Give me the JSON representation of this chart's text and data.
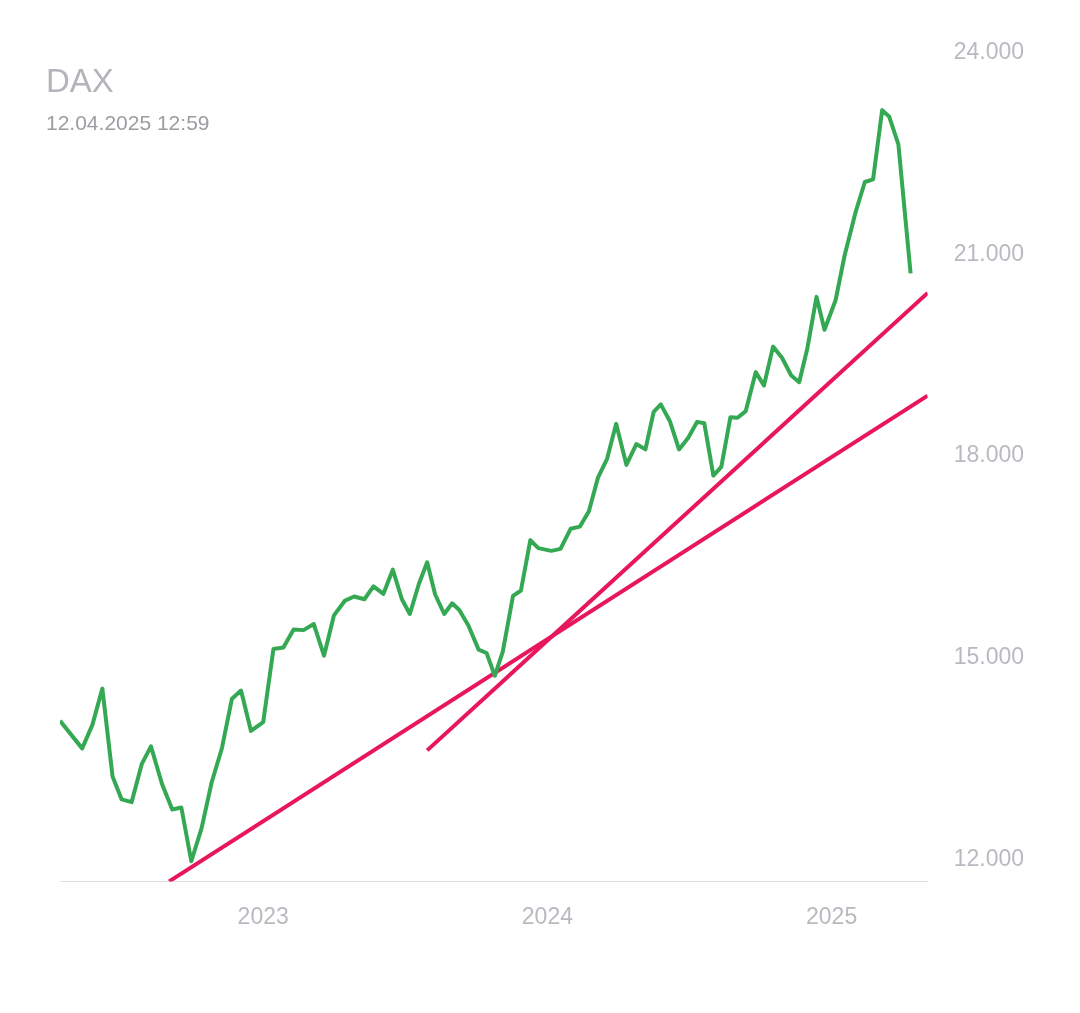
{
  "chart_data": {
    "type": "line",
    "title": "DAX",
    "subtitle": "12.04.2025 12:59",
    "xlim": [
      2022.285,
      2025.338
    ],
    "xticks": [
      2023,
      2024,
      2025
    ],
    "ylim": [
      11670,
      24000
    ],
    "yticks": [
      {
        "value": 12000,
        "label": "12.000"
      },
      {
        "value": 15000,
        "label": "15.000"
      },
      {
        "value": 18000,
        "label": "18.000"
      },
      {
        "value": 21000,
        "label": "21.000"
      },
      {
        "value": 24000,
        "label": "24.000"
      }
    ],
    "grid": false,
    "legend": false,
    "marker": "none",
    "line_style": "solid",
    "series": [
      {
        "color": "#34a853",
        "x": [
          2022.285,
          2022.363,
          2022.399,
          2022.434,
          2022.47,
          2022.502,
          2022.537,
          2022.573,
          2022.605,
          2022.644,
          2022.68,
          2022.712,
          2022.747,
          2022.783,
          2022.819,
          2022.854,
          2022.89,
          2022.922,
          2022.957,
          2023.0,
          2023.036,
          2023.071,
          2023.107,
          2023.142,
          2023.178,
          2023.214,
          2023.249,
          2023.288,
          2023.32,
          2023.356,
          2023.388,
          2023.423,
          2023.456,
          2023.488,
          2023.516,
          2023.548,
          2023.577,
          2023.605,
          2023.637,
          2023.665,
          2023.69,
          2023.722,
          2023.758,
          2023.786,
          2023.815,
          2023.843,
          2023.879,
          2023.907,
          2023.94,
          2023.968,
          2024.014,
          2024.046,
          2024.082,
          2024.114,
          2024.146,
          2024.178,
          2024.21,
          2024.242,
          2024.278,
          2024.313,
          2024.345,
          2024.374,
          2024.399,
          2024.431,
          2024.463,
          2024.495,
          2024.527,
          2024.552,
          2024.584,
          2024.612,
          2024.644,
          2024.669,
          2024.698,
          2024.733,
          2024.762,
          2024.794,
          2024.826,
          2024.858,
          2024.886,
          2024.915,
          2024.947,
          2024.975,
          2025.014,
          2025.046,
          2025.085,
          2025.117,
          2025.146,
          2025.178,
          2025.203,
          2025.235,
          2025.278
        ],
        "values": [
          14060,
          13650,
          14000,
          14540,
          13230,
          12890,
          12850,
          13420,
          13680,
          13120,
          12740,
          12770,
          11970,
          12460,
          13150,
          13640,
          14390,
          14510,
          13910,
          14040,
          15130,
          15150,
          15420,
          15410,
          15500,
          15030,
          15630,
          15850,
          15910,
          15870,
          16060,
          15950,
          16310,
          15870,
          15650,
          16100,
          16420,
          15940,
          15650,
          15810,
          15710,
          15480,
          15120,
          15070,
          14730,
          15090,
          15920,
          16000,
          16750,
          16630,
          16590,
          16620,
          16920,
          16950,
          17180,
          17680,
          17960,
          18480,
          17870,
          18180,
          18100,
          18660,
          18770,
          18520,
          18100,
          18270,
          18510,
          18490,
          17710,
          17840,
          18580,
          18570,
          18670,
          19250,
          19050,
          19630,
          19460,
          19200,
          19100,
          19610,
          20370,
          19880,
          20320,
          20990,
          21640,
          22080,
          22120,
          23150,
          23050,
          22640,
          20720
        ]
      },
      {
        "color": "#e8175d",
        "x": [
          2022.669,
          2025.338
        ],
        "values": [
          11670,
          18900
        ]
      },
      {
        "color": "#e8175d",
        "x": [
          2023.577,
          2025.338
        ],
        "values": [
          13620,
          20430
        ]
      }
    ]
  }
}
